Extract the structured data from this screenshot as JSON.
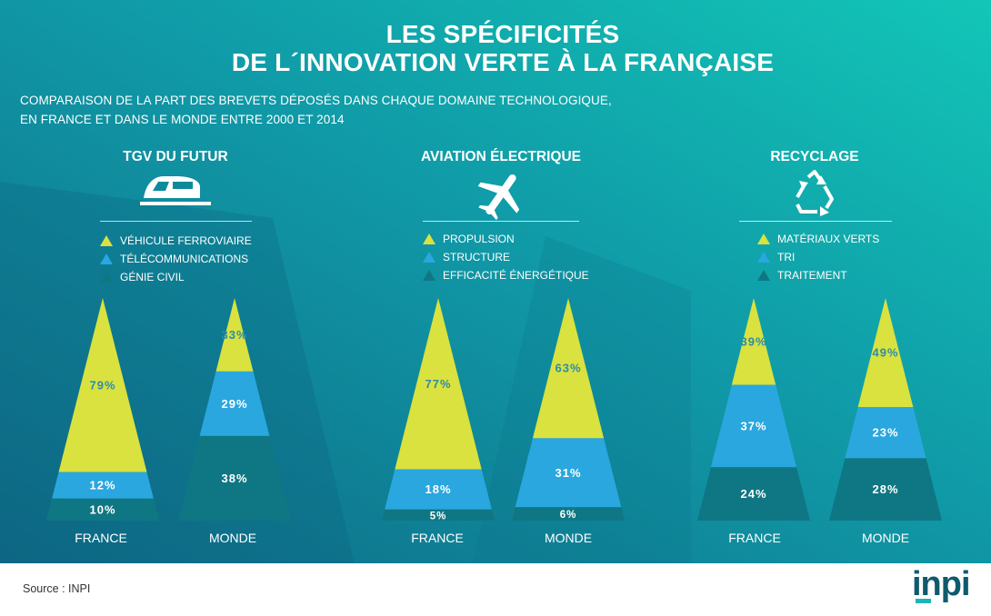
{
  "header": {
    "title_line1": "LES SPÉCIFICITÉS",
    "title_line2": "DE L´INNOVATION VERTE À LA FRANÇAISE",
    "subtitle_line1": "COMPARAISON DE LA PART DES BREVETS DÉPOSÉS DANS CHAQUE DOMAINE TECHNOLOGIQUE,",
    "subtitle_line2": "EN FRANCE ET DANS LE MONDE ENTRE 2000 ET 2014"
  },
  "colors": {
    "segment_top": "#d9e23e",
    "segment_mid": "#2aa7df",
    "segment_bottom": "#0f7783",
    "bg_left": "#0e6a86",
    "bg_right": "#12c6b7",
    "label_on_top": "#2b8caa",
    "label_on_dark": "#ffffff"
  },
  "chart_data": [
    {
      "type": "stacked-triangle",
      "title": "TGV DU FUTUR",
      "icon": "train-icon",
      "legend": [
        "VÉHICULE FERROVIAIRE",
        "TÉLÉCOMMUNICATIONS",
        "GÉNIE CIVIL"
      ],
      "categories": [
        "FRANCE",
        "MONDE"
      ],
      "series": [
        {
          "name": "VÉHICULE FERROVIAIRE",
          "values": [
            79,
            33
          ],
          "labels": [
            "79%",
            "33%"
          ]
        },
        {
          "name": "TÉLÉCOMMUNICATIONS",
          "values": [
            12,
            29
          ],
          "labels": [
            "12%",
            "29%"
          ]
        },
        {
          "name": "GÉNIE CIVIL",
          "values": [
            10,
            38
          ],
          "labels": [
            "10%",
            "38%"
          ]
        }
      ]
    },
    {
      "type": "stacked-triangle",
      "title": "AVIATION ÉLECTRIQUE",
      "icon": "airplane-icon",
      "legend": [
        "PROPULSION",
        "STRUCTURE",
        "EFFICACITÉ ÉNERGÉTIQUE"
      ],
      "categories": [
        "FRANCE",
        "MONDE"
      ],
      "series": [
        {
          "name": "PROPULSION",
          "values": [
            77,
            63
          ],
          "labels": [
            "77%",
            "63%"
          ]
        },
        {
          "name": "STRUCTURE",
          "values": [
            18,
            31
          ],
          "labels": [
            "18%",
            "31%"
          ]
        },
        {
          "name": "EFFICACITÉ ÉNERGÉTIQUE",
          "values": [
            5,
            6
          ],
          "labels": [
            "5%",
            "6%"
          ]
        }
      ]
    },
    {
      "type": "stacked-triangle",
      "title": "RECYCLAGE",
      "icon": "recycle-icon",
      "legend": [
        "MATÉRIAUX VERTS",
        "TRI",
        "TRAITEMENT"
      ],
      "categories": [
        "FRANCE",
        "MONDE"
      ],
      "series": [
        {
          "name": "MATÉRIAUX VERTS",
          "values": [
            39,
            49
          ],
          "labels": [
            "39%",
            "49%"
          ]
        },
        {
          "name": "TRI",
          "values": [
            37,
            23
          ],
          "labels": [
            "37%",
            "23%"
          ]
        },
        {
          "name": "TRAITEMENT",
          "values": [
            24,
            28
          ],
          "labels": [
            "24%",
            "28%"
          ]
        }
      ]
    }
  ],
  "footer": {
    "source": "Source : INPI",
    "logo": "inpi"
  }
}
